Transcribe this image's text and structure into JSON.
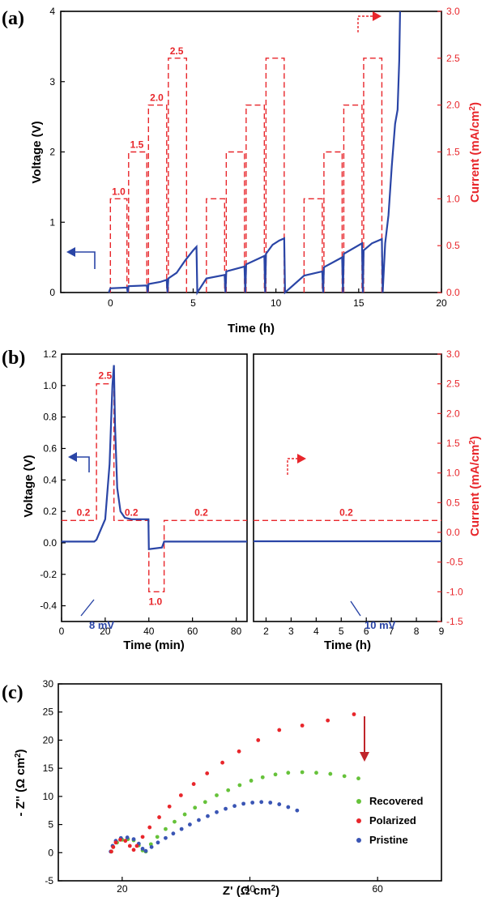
{
  "colors": {
    "voltage": "#2a45a6",
    "current": "#e8262b",
    "recovered": "#66c23a",
    "polarized": "#e8262b",
    "pristine": "#3a55b4"
  },
  "chart_data": [
    {
      "panel_label": "(a)",
      "type": "line",
      "xlabel": "Time (h)",
      "ylabel_left": "Voltage (V)",
      "ylabel_right_base": "Current (mA/cm",
      "ylabel_right_sup": "2",
      "ylabel_right_end": ")",
      "xlim": [
        -3,
        20
      ],
      "ylim_left": [
        0,
        4
      ],
      "ylim_right": [
        0,
        3
      ],
      "xticks": [
        "0",
        "5",
        "10",
        "15",
        "20"
      ],
      "xtick_values": [
        0,
        5,
        10,
        15,
        20
      ],
      "yticks_left": [
        "0",
        "1",
        "2",
        "3",
        "4"
      ],
      "ytick_left_values": [
        0,
        1,
        2,
        3,
        4
      ],
      "yticks_right": [
        "0.0",
        "0.5",
        "1.0",
        "1.5",
        "2.0",
        "2.5",
        "3.0"
      ],
      "ytick_right_values": [
        0,
        0.5,
        1,
        1.5,
        2,
        2.5,
        3
      ],
      "current_steps": [
        {
          "x0": 0,
          "x1": 1,
          "i": 1.0
        },
        {
          "x0": 1.1,
          "x1": 2.2,
          "i": 1.5
        },
        {
          "x0": 2.3,
          "x1": 3.4,
          "i": 2.0
        },
        {
          "x0": 3.5,
          "x1": 4.6,
          "i": 2.5
        },
        {
          "x0": 5.8,
          "x1": 6.9,
          "i": 1.0
        },
        {
          "x0": 7.0,
          "x1": 8.1,
          "i": 1.5
        },
        {
          "x0": 8.2,
          "x1": 9.3,
          "i": 2.0
        },
        {
          "x0": 9.4,
          "x1": 10.5,
          "i": 2.5
        },
        {
          "x0": 11.7,
          "x1": 12.8,
          "i": 1.0
        },
        {
          "x0": 12.9,
          "x1": 14.0,
          "i": 1.5
        },
        {
          "x0": 14.1,
          "x1": 15.2,
          "i": 2.0
        },
        {
          "x0": 15.3,
          "x1": 16.4,
          "i": 2.5
        }
      ],
      "current_labels": [
        {
          "text": "1.0",
          "x": 0.5,
          "i": 1.0
        },
        {
          "text": "1.5",
          "x": 1.6,
          "i": 1.5
        },
        {
          "text": "2.0",
          "x": 2.8,
          "i": 2.0
        },
        {
          "text": "2.5",
          "x": 4.0,
          "i": 2.5
        }
      ],
      "voltage": [
        [
          -0.1,
          0.0
        ],
        [
          0.0,
          0.06
        ],
        [
          1.0,
          0.07
        ],
        [
          1.05,
          0.0
        ],
        [
          1.1,
          0.09
        ],
        [
          2.2,
          0.1
        ],
        [
          2.25,
          0.0
        ],
        [
          2.3,
          0.12
        ],
        [
          3.0,
          0.15
        ],
        [
          3.4,
          0.18
        ],
        [
          3.45,
          0.0
        ],
        [
          3.5,
          0.2
        ],
        [
          4.0,
          0.28
        ],
        [
          4.5,
          0.45
        ],
        [
          5.0,
          0.6
        ],
        [
          5.2,
          0.65
        ],
        [
          5.25,
          0.0
        ],
        [
          5.8,
          0.2
        ],
        [
          6.9,
          0.25
        ],
        [
          6.95,
          0.0
        ],
        [
          7.0,
          0.3
        ],
        [
          8.1,
          0.37
        ],
        [
          8.15,
          0.0
        ],
        [
          8.2,
          0.4
        ],
        [
          9.3,
          0.52
        ],
        [
          9.35,
          0.0
        ],
        [
          9.4,
          0.55
        ],
        [
          9.8,
          0.68
        ],
        [
          10.2,
          0.74
        ],
        [
          10.5,
          0.77
        ],
        [
          10.55,
          0.0
        ],
        [
          11.7,
          0.24
        ],
        [
          12.8,
          0.3
        ],
        [
          12.85,
          0.0
        ],
        [
          12.9,
          0.36
        ],
        [
          14.0,
          0.5
        ],
        [
          14.05,
          0.0
        ],
        [
          14.1,
          0.55
        ],
        [
          15.2,
          0.7
        ],
        [
          15.25,
          0.0
        ],
        [
          15.3,
          0.6
        ],
        [
          15.8,
          0.7
        ],
        [
          16.4,
          0.76
        ],
        [
          16.45,
          0.0
        ],
        [
          16.6,
          0.7
        ],
        [
          16.8,
          1.1
        ],
        [
          17.0,
          1.8
        ],
        [
          17.2,
          2.4
        ],
        [
          17.35,
          2.6
        ],
        [
          17.45,
          3.3
        ],
        [
          17.5,
          4.0
        ]
      ]
    },
    {
      "panel_label": "(b)",
      "type": "line",
      "left": {
        "xlabel": "Time (min)",
        "ylabel": "Voltage (V)",
        "xlim": [
          0,
          85
        ],
        "ylim": [
          -0.5,
          1.2
        ],
        "xticks": [
          "0",
          "20",
          "40",
          "60",
          "80"
        ],
        "xtick_values": [
          0,
          20,
          40,
          60,
          80
        ],
        "yticks": [
          "-0.4",
          "-0.2",
          "0.0",
          "0.2",
          "0.4",
          "0.6",
          "0.8",
          "1.0",
          "1.2"
        ],
        "ytick_values": [
          -0.4,
          -0.2,
          0,
          0.2,
          0.4,
          0.6,
          0.8,
          1.0,
          1.2
        ],
        "current": [
          [
            0,
            0.2
          ],
          [
            16,
            0.2
          ],
          [
            16,
            2.5
          ],
          [
            24,
            2.5
          ],
          [
            24,
            0.2
          ],
          [
            40,
            0.2
          ],
          [
            40,
            -1.0
          ],
          [
            47,
            -1.0
          ],
          [
            47,
            0.2
          ],
          [
            85,
            0.2
          ]
        ],
        "voltage": [
          [
            0,
            0.008
          ],
          [
            15,
            0.008
          ],
          [
            16,
            0.02
          ],
          [
            20,
            0.15
          ],
          [
            22,
            0.5
          ],
          [
            23.3,
            1.0
          ],
          [
            24,
            1.13
          ],
          [
            24.5,
            0.75
          ],
          [
            25.5,
            0.35
          ],
          [
            27,
            0.2
          ],
          [
            29,
            0.16
          ],
          [
            32,
            0.15
          ],
          [
            39.8,
            0.15
          ],
          [
            40,
            -0.04
          ],
          [
            46,
            -0.03
          ],
          [
            47,
            0.008
          ],
          [
            85,
            0.008
          ]
        ],
        "labels": [
          {
            "text": "2.5",
            "x": 20,
            "i": 2.5
          },
          {
            "text": "0.2",
            "x": 10,
            "i": 0.2
          },
          {
            "text": "0.2",
            "x": 32,
            "i": 0.2
          },
          {
            "text": "0.2",
            "x": 64,
            "i": 0.2
          },
          {
            "text": "1.0",
            "x": 43,
            "i": -1.0
          }
        ],
        "voltage_note": "8 mV"
      },
      "right": {
        "xlabel": "Time (h)",
        "ylabel_base": "Current (mA/cm",
        "ylabel_sup": "2",
        "ylabel_end": ")",
        "xlim": [
          1.5,
          9
        ],
        "ylim": [
          -1.5,
          3.0
        ],
        "xticks": [
          "2",
          "3",
          "4",
          "5",
          "6",
          "7",
          "8",
          "9"
        ],
        "xtick_values": [
          2,
          3,
          4,
          5,
          6,
          7,
          8,
          9
        ],
        "yticks": [
          "-1.5",
          "-1.0",
          "-0.5",
          "0.0",
          "0.5",
          "1.0",
          "1.5",
          "2.0",
          "2.5",
          "3.0"
        ],
        "ytick_values": [
          -1.5,
          -1.0,
          -0.5,
          0,
          0.5,
          1.0,
          1.5,
          2.0,
          2.5,
          3.0
        ],
        "current": [
          [
            1.5,
            0.2
          ],
          [
            9,
            0.2
          ]
        ],
        "voltage": [
          [
            1.5,
            0.01
          ],
          [
            9,
            0.01
          ]
        ],
        "label": {
          "text": "0.2",
          "x": 5.2,
          "i": 0.2
        },
        "voltage_note": "10 mV"
      }
    },
    {
      "panel_label": "(c)",
      "type": "scatter",
      "xlabel_base": "Z' (Ω cm",
      "xlabel_sup": "2",
      "xlabel_end": ")",
      "ylabel_base": "- Z'' (Ω cm",
      "ylabel_sup": "2",
      "ylabel_end": ")",
      "xlim": [
        10,
        70
      ],
      "ylim": [
        -5,
        30
      ],
      "xticks": [
        "20",
        "40",
        "60"
      ],
      "xtick_values": [
        20,
        40,
        60
      ],
      "yticks": [
        "-5",
        "0",
        "5",
        "10",
        "15",
        "20",
        "25",
        "30"
      ],
      "ytick_values": [
        -5,
        0,
        5,
        10,
        15,
        20,
        25,
        30
      ],
      "series": [
        {
          "name": "Recovered",
          "color": "#66c23a",
          "points": [
            [
              18.3,
              0.2
            ],
            [
              18.6,
              1.0
            ],
            [
              19.2,
              1.8
            ],
            [
              20.0,
              2.3
            ],
            [
              20.9,
              2.4
            ],
            [
              21.8,
              2.2
            ],
            [
              22.6,
              1.3
            ],
            [
              23.2,
              0.4
            ],
            [
              23.7,
              0.2
            ],
            [
              24.5,
              1.5
            ],
            [
              25.5,
              2.8
            ],
            [
              26.8,
              4.2
            ],
            [
              28.2,
              5.5
            ],
            [
              29.8,
              6.8
            ],
            [
              31.4,
              8.0
            ],
            [
              33.0,
              9.0
            ],
            [
              34.8,
              10.2
            ],
            [
              36.6,
              11.1
            ],
            [
              38.4,
              12.0
            ],
            [
              40.2,
              12.8
            ],
            [
              42.0,
              13.4
            ],
            [
              44.0,
              13.9
            ],
            [
              46.0,
              14.2
            ],
            [
              48.2,
              14.3
            ],
            [
              50.4,
              14.2
            ],
            [
              52.6,
              14.0
            ],
            [
              54.8,
              13.6
            ],
            [
              57.0,
              13.2
            ]
          ]
        },
        {
          "name": "Polarized",
          "color": "#e8262b",
          "points": [
            [
              18.3,
              0.2
            ],
            [
              18.6,
              1.0
            ],
            [
              19.0,
              1.8
            ],
            [
              19.7,
              2.3
            ],
            [
              20.5,
              2.1
            ],
            [
              21.2,
              1.2
            ],
            [
              21.8,
              0.5
            ],
            [
              22.3,
              1.2
            ],
            [
              23.2,
              2.8
            ],
            [
              24.3,
              4.5
            ],
            [
              25.8,
              6.3
            ],
            [
              27.4,
              8.2
            ],
            [
              29.2,
              10.2
            ],
            [
              31.2,
              12.2
            ],
            [
              33.3,
              14.1
            ],
            [
              35.7,
              16.0
            ],
            [
              38.3,
              18.0
            ],
            [
              41.3,
              20.0
            ],
            [
              44.6,
              21.8
            ],
            [
              48.2,
              22.6
            ],
            [
              52.2,
              23.5
            ],
            [
              56.3,
              24.6
            ]
          ]
        },
        {
          "name": "Pristine",
          "color": "#3a55b4",
          "points": [
            [
              18.2,
              0.2
            ],
            [
              18.5,
              1.2
            ],
            [
              19.0,
              2.1
            ],
            [
              19.8,
              2.6
            ],
            [
              20.8,
              2.7
            ],
            [
              21.8,
              2.4
            ],
            [
              22.6,
              1.6
            ],
            [
              23.2,
              0.7
            ],
            [
              23.7,
              0.3
            ],
            [
              24.6,
              1.0
            ],
            [
              25.6,
              1.8
            ],
            [
              26.8,
              2.6
            ],
            [
              28.0,
              3.4
            ],
            [
              29.3,
              4.2
            ],
            [
              30.6,
              5.0
            ],
            [
              32.0,
              5.8
            ],
            [
              33.4,
              6.5
            ],
            [
              34.8,
              7.2
            ],
            [
              36.2,
              7.8
            ],
            [
              37.6,
              8.3
            ],
            [
              39.0,
              8.7
            ],
            [
              40.4,
              8.9
            ],
            [
              41.8,
              9.0
            ],
            [
              43.2,
              8.9
            ],
            [
              44.6,
              8.6
            ],
            [
              46.0,
              8.1
            ],
            [
              47.4,
              7.5
            ]
          ]
        }
      ],
      "legend_position": "bottom-right"
    }
  ]
}
